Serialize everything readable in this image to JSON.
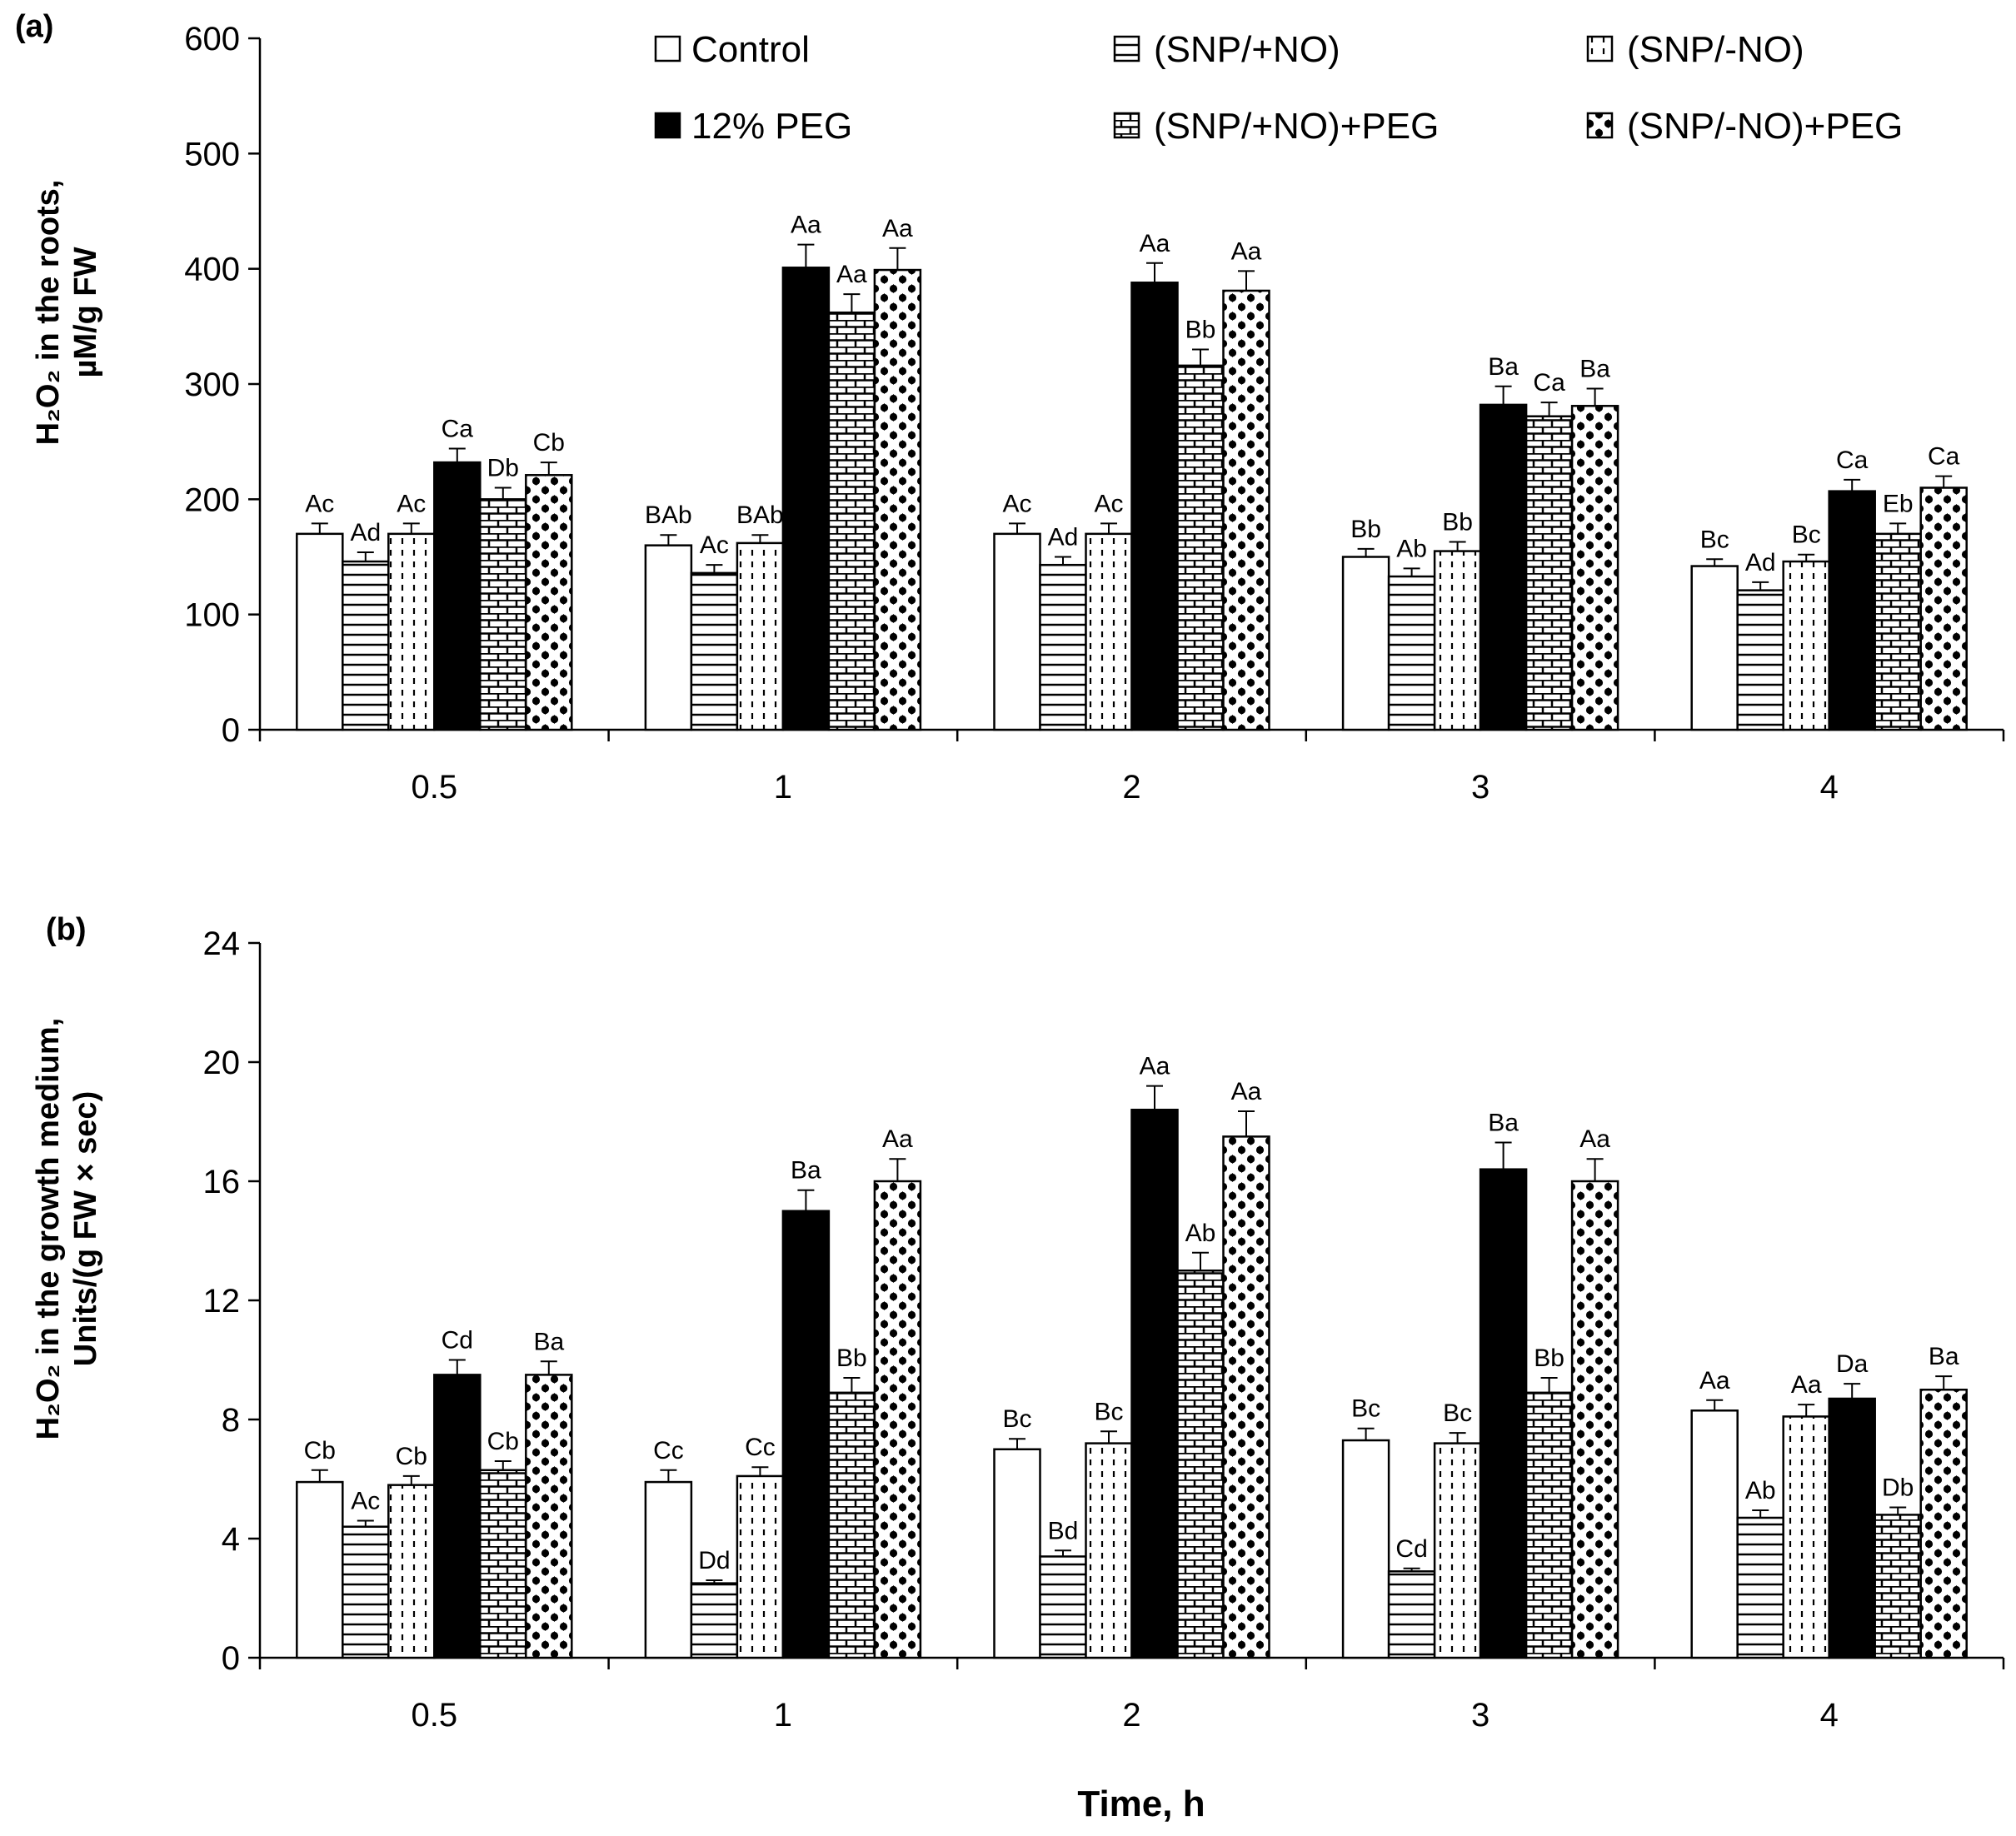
{
  "xlabel": "Time, h",
  "legend": [
    {
      "label": "Control",
      "pattern": "white"
    },
    {
      "label": "(SNP/+NO)",
      "pattern": "hlines"
    },
    {
      "label": "(SNP/-NO)",
      "pattern": "dashes"
    },
    {
      "label": "12% PEG",
      "pattern": "black"
    },
    {
      "label": "(SNP/+NO)+PEG",
      "pattern": "bricks"
    },
    {
      "label": "(SNP/-NO)+PEG",
      "pattern": "dots"
    }
  ],
  "chart_data": [
    {
      "type": "bar",
      "panel_label": "(a)",
      "ylabel_line1": "H₂O₂ in the roots,",
      "ylabel_line2": "µM/g FW",
      "xlabel": "Time, h",
      "categories": [
        "0.5",
        "1",
        "2",
        "3",
        "4"
      ],
      "ylim": [
        0,
        600
      ],
      "yticks": [
        "0",
        "100",
        "200",
        "300",
        "400",
        "500",
        "600"
      ],
      "series": [
        {
          "name": "Control",
          "values": [
            170,
            160,
            170,
            150,
            142
          ],
          "errors": [
            9,
            9,
            9,
            7,
            6
          ],
          "labels": [
            "Ac",
            "BAb",
            "Ac",
            "Bb",
            "Bc"
          ]
        },
        {
          "name": "(SNP/+NO)",
          "values": [
            146,
            136,
            143,
            133,
            121
          ],
          "errors": [
            8,
            7,
            7,
            7,
            7
          ],
          "labels": [
            "Ad",
            "Ac",
            "Ad",
            "Ab",
            "Ad"
          ]
        },
        {
          "name": "(SNP/-NO)",
          "values": [
            170,
            162,
            170,
            155,
            146
          ],
          "errors": [
            9,
            7,
            9,
            8,
            6
          ],
          "labels": [
            "Ac",
            "BAb",
            "Ac",
            "Bb",
            "Bc"
          ]
        },
        {
          "name": "12% PEG",
          "values": [
            232,
            401,
            388,
            282,
            207
          ],
          "errors": [
            12,
            20,
            17,
            16,
            10
          ],
          "labels": [
            "Ca",
            "Aa",
            "Aa",
            "Ba",
            "Ca"
          ]
        },
        {
          "name": "(SNP/+NO)+PEG",
          "values": [
            200,
            362,
            316,
            272,
            170
          ],
          "errors": [
            10,
            16,
            14,
            12,
            9
          ],
          "labels": [
            "Db",
            "Aa",
            "Bb",
            "Ca",
            "Eb"
          ]
        },
        {
          "name": "(SNP/-NO)+PEG",
          "values": [
            221,
            399,
            381,
            281,
            210
          ],
          "errors": [
            11,
            19,
            17,
            15,
            10
          ],
          "labels": [
            "Cb",
            "Aa",
            "Aa",
            "Ba",
            "Ca"
          ]
        }
      ]
    },
    {
      "type": "bar",
      "panel_label": "(b)",
      "ylabel_line1": "H₂O₂ in the growth medium,",
      "ylabel_line2": "Units/(g FW × sec)",
      "xlabel": "Time, h",
      "categories": [
        "0.5",
        "1",
        "2",
        "3",
        "4"
      ],
      "ylim": [
        0,
        24
      ],
      "yticks": [
        "0",
        "4",
        "8",
        "12",
        "16",
        "20",
        "24"
      ],
      "series": [
        {
          "name": "Control",
          "values": [
            5.9,
            5.9,
            7.0,
            7.3,
            8.3
          ],
          "errors": [
            0.4,
            0.4,
            0.35,
            0.4,
            0.35
          ],
          "labels": [
            "Cb",
            "Cc",
            "Bc",
            "Bc",
            "Aa"
          ]
        },
        {
          "name": "(SNP/+NO)",
          "values": [
            4.4,
            2.5,
            3.4,
            2.9,
            4.7
          ],
          "errors": [
            0.2,
            0.1,
            0.2,
            0.1,
            0.25
          ],
          "labels": [
            "Ac",
            "Dd",
            "Bd",
            "Cd",
            "Ab"
          ]
        },
        {
          "name": "(SNP/-NO)",
          "values": [
            5.8,
            6.1,
            7.2,
            7.2,
            8.1
          ],
          "errors": [
            0.3,
            0.3,
            0.4,
            0.35,
            0.4
          ],
          "labels": [
            "Cb",
            "Cc",
            "Bc",
            "Bc",
            "Aa"
          ]
        },
        {
          "name": "12% PEG",
          "values": [
            9.5,
            15.0,
            18.4,
            16.4,
            8.7
          ],
          "errors": [
            0.5,
            0.7,
            0.8,
            0.9,
            0.5
          ],
          "labels": [
            "Cd",
            "Ba",
            "Aa",
            "Ba",
            "Da"
          ]
        },
        {
          "name": "(SNP/+NO)+PEG",
          "values": [
            6.3,
            8.9,
            13.0,
            8.9,
            4.8
          ],
          "errors": [
            0.3,
            0.5,
            0.6,
            0.5,
            0.25
          ],
          "labels": [
            "Cb",
            "Bb",
            "Ab",
            "Bb",
            "Db"
          ]
        },
        {
          "name": "(SNP/-NO)+PEG",
          "values": [
            9.5,
            16.0,
            17.5,
            16.0,
            9.0
          ],
          "errors": [
            0.45,
            0.75,
            0.85,
            0.75,
            0.45
          ],
          "labels": [
            "Ba",
            "Aa",
            "Aa",
            "Aa",
            "Ba"
          ]
        }
      ]
    }
  ]
}
